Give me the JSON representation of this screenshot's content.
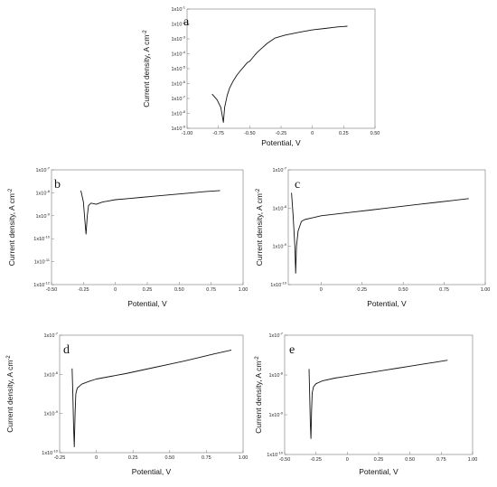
{
  "chart_data": [
    {
      "panel_label": "a",
      "type": "line",
      "xlabel": "Potential, V",
      "ylabel": "Current density, A cm",
      "ylabel_sup": "-2",
      "xlim": [
        -1.0,
        0.5
      ],
      "ylim_log10": [
        -9,
        -1
      ],
      "x_ticks": [
        "-1.00",
        "-0.75",
        "-0.50",
        "-0.25",
        "0",
        "0.25",
        "0.50"
      ],
      "x_tick_values": [
        -1.0,
        -0.75,
        -0.5,
        -0.25,
        0,
        0.25,
        0.5
      ],
      "y_ticks": [
        {
          "base": "1x10",
          "exp": "-1"
        },
        {
          "base": "1x10",
          "exp": "-2"
        },
        {
          "base": "1x10",
          "exp": "-3"
        },
        {
          "base": "1x10",
          "exp": "-4"
        },
        {
          "base": "1x10",
          "exp": "-5"
        },
        {
          "base": "1x10",
          "exp": "-6"
        },
        {
          "base": "1x10",
          "exp": "-7"
        },
        {
          "base": "1x10",
          "exp": "-8"
        },
        {
          "base": "1x10",
          "exp": "-9"
        }
      ],
      "y_tick_values": [
        -1,
        -2,
        -3,
        -4,
        -5,
        -6,
        -7,
        -8,
        -9
      ],
      "series": [
        {
          "points": [
            [
              -0.8,
              -6.7
            ],
            [
              -0.76,
              -7.1
            ],
            [
              -0.73,
              -7.6
            ],
            [
              -0.71,
              -8.6
            ],
            [
              -0.7,
              -7.6
            ],
            [
              -0.68,
              -6.8
            ],
            [
              -0.66,
              -6.3
            ],
            [
              -0.63,
              -5.8
            ],
            [
              -0.6,
              -5.4
            ],
            [
              -0.57,
              -5.1
            ],
            [
              -0.54,
              -4.8
            ],
            [
              -0.52,
              -4.6
            ],
            [
              -0.5,
              -4.5
            ],
            [
              -0.48,
              -4.3
            ],
            [
              -0.46,
              -4.1
            ],
            [
              -0.44,
              -3.9
            ],
            [
              -0.42,
              -3.75
            ],
            [
              -0.4,
              -3.6
            ],
            [
              -0.36,
              -3.3
            ],
            [
              -0.3,
              -2.95
            ],
            [
              -0.22,
              -2.75
            ],
            [
              -0.1,
              -2.55
            ],
            [
              0.0,
              -2.4
            ],
            [
              0.1,
              -2.3
            ],
            [
              0.2,
              -2.2
            ],
            [
              0.28,
              -2.15
            ]
          ]
        }
      ]
    },
    {
      "panel_label": "b",
      "type": "line",
      "xlabel": "Potential, V",
      "ylabel": "Current density, A cm",
      "ylabel_sup": "-2",
      "xlim": [
        -0.5,
        1.0
      ],
      "ylim_log10": [
        -12,
        -7
      ],
      "x_ticks": [
        "-0.50",
        "-0.25",
        "0",
        "0.25",
        "0.50",
        "0.75",
        "1.00"
      ],
      "x_tick_values": [
        -0.5,
        -0.25,
        0,
        0.25,
        0.5,
        0.75,
        1.0
      ],
      "y_ticks": [
        {
          "base": "1x10",
          "exp": "-7"
        },
        {
          "base": "1x10",
          "exp": "-8"
        },
        {
          "base": "1x10",
          "exp": "-9"
        },
        {
          "base": "1x10",
          "exp": "-10"
        },
        {
          "base": "1x10",
          "exp": "-11"
        },
        {
          "base": "1x10",
          "exp": "-12"
        }
      ],
      "y_tick_values": [
        -7,
        -8,
        -9,
        -10,
        -11,
        -12
      ],
      "series": [
        {
          "points": [
            [
              -0.27,
              -7.9
            ],
            [
              -0.25,
              -8.4
            ],
            [
              -0.24,
              -9.1
            ],
            [
              -0.23,
              -9.8
            ],
            [
              -0.22,
              -9.0
            ],
            [
              -0.21,
              -8.55
            ],
            [
              -0.19,
              -8.45
            ],
            [
              -0.15,
              -8.5
            ],
            [
              -0.1,
              -8.4
            ],
            [
              -0.05,
              -8.35
            ],
            [
              0.0,
              -8.3
            ],
            [
              0.1,
              -8.25
            ],
            [
              0.2,
              -8.2
            ],
            [
              0.3,
              -8.15
            ],
            [
              0.4,
              -8.1
            ],
            [
              0.5,
              -8.05
            ],
            [
              0.6,
              -8.0
            ],
            [
              0.7,
              -7.95
            ],
            [
              0.82,
              -7.9
            ]
          ]
        }
      ]
    },
    {
      "panel_label": "c",
      "type": "line",
      "xlabel": "Potential, V",
      "ylabel": "Current density, A cm",
      "ylabel_sup": "-2",
      "xlim": [
        -0.2,
        1.0
      ],
      "ylim_log10": [
        -10,
        -7
      ],
      "x_ticks": [
        "0",
        "0.25",
        "0.50",
        "0.75",
        "1.00"
      ],
      "x_tick_values": [
        0,
        0.25,
        0.5,
        0.75,
        1.0
      ],
      "y_ticks": [
        {
          "base": "1x10",
          "exp": "-7"
        },
        {
          "base": "1x10",
          "exp": "-8"
        },
        {
          "base": "1x10",
          "exp": "-9"
        },
        {
          "base": "1x10",
          "exp": "-10"
        }
      ],
      "y_tick_values": [
        -7,
        -8,
        -9,
        -10
      ],
      "series": [
        {
          "points": [
            [
              -0.18,
              -7.6
            ],
            [
              -0.17,
              -8.2
            ],
            [
              -0.16,
              -9.0
            ],
            [
              -0.155,
              -9.7
            ],
            [
              -0.15,
              -9.0
            ],
            [
              -0.14,
              -8.6
            ],
            [
              -0.12,
              -8.35
            ],
            [
              -0.1,
              -8.3
            ],
            [
              -0.05,
              -8.25
            ],
            [
              0.0,
              -8.2
            ],
            [
              0.1,
              -8.15
            ],
            [
              0.2,
              -8.1
            ],
            [
              0.3,
              -8.05
            ],
            [
              0.4,
              -8.0
            ],
            [
              0.5,
              -7.95
            ],
            [
              0.6,
              -7.9
            ],
            [
              0.7,
              -7.85
            ],
            [
              0.8,
              -7.8
            ],
            [
              0.9,
              -7.75
            ]
          ]
        }
      ]
    },
    {
      "panel_label": "d",
      "type": "line",
      "xlabel": "Potential, V",
      "ylabel": "Current density, A cm",
      "ylabel_sup": "-2",
      "xlim": [
        -0.25,
        1.0
      ],
      "ylim_log10": [
        -10,
        -7
      ],
      "x_ticks": [
        "-0.25",
        "0",
        "0.25",
        "0.50",
        "0.75",
        "1.00"
      ],
      "x_tick_values": [
        -0.25,
        0,
        0.25,
        0.5,
        0.75,
        1.0
      ],
      "y_ticks": [
        {
          "base": "1x10",
          "exp": "-7"
        },
        {
          "base": "1x10",
          "exp": "-8"
        },
        {
          "base": "1x10",
          "exp": "-9"
        },
        {
          "base": "1x10",
          "exp": "-10"
        }
      ],
      "y_tick_values": [
        -7,
        -8,
        -9,
        -10
      ],
      "series": [
        {
          "points": [
            [
              -0.165,
              -7.85
            ],
            [
              -0.16,
              -8.5
            ],
            [
              -0.155,
              -9.3
            ],
            [
              -0.15,
              -9.85
            ],
            [
              -0.145,
              -9.0
            ],
            [
              -0.14,
              -8.5
            ],
            [
              -0.13,
              -8.35
            ],
            [
              -0.1,
              -8.25
            ],
            [
              -0.05,
              -8.18
            ],
            [
              0.0,
              -8.12
            ],
            [
              0.1,
              -8.05
            ],
            [
              0.2,
              -7.98
            ],
            [
              0.3,
              -7.9
            ],
            [
              0.4,
              -7.82
            ],
            [
              0.5,
              -7.74
            ],
            [
              0.6,
              -7.66
            ],
            [
              0.7,
              -7.57
            ],
            [
              0.8,
              -7.48
            ],
            [
              0.92,
              -7.38
            ]
          ]
        }
      ]
    },
    {
      "panel_label": "e",
      "type": "line",
      "xlabel": "Potential, V",
      "ylabel": "Current density, A cm",
      "ylabel_sup": "-2",
      "xlim": [
        -0.5,
        1.0
      ],
      "ylim_log10": [
        -10,
        -7
      ],
      "x_ticks": [
        "-0.50",
        "-0.25",
        "0",
        "0.25",
        "0.50",
        "0.75",
        "1.00"
      ],
      "x_tick_values": [
        -0.5,
        -0.25,
        0,
        0.25,
        0.5,
        0.75,
        1.0
      ],
      "y_ticks": [
        {
          "base": "1x10",
          "exp": "-7"
        },
        {
          "base": "1x10",
          "exp": "-8"
        },
        {
          "base": "1x10",
          "exp": "-9"
        },
        {
          "base": "1x10",
          "exp": "-10"
        }
      ],
      "y_tick_values": [
        -7,
        -8,
        -9,
        -10
      ],
      "series": [
        {
          "points": [
            [
              -0.305,
              -7.85
            ],
            [
              -0.3,
              -8.5
            ],
            [
              -0.295,
              -9.2
            ],
            [
              -0.29,
              -9.6
            ],
            [
              -0.285,
              -8.9
            ],
            [
              -0.28,
              -8.45
            ],
            [
              -0.27,
              -8.3
            ],
            [
              -0.25,
              -8.22
            ],
            [
              -0.2,
              -8.15
            ],
            [
              -0.1,
              -8.08
            ],
            [
              0.0,
              -8.03
            ],
            [
              0.1,
              -7.98
            ],
            [
              0.2,
              -7.93
            ],
            [
              0.3,
              -7.88
            ],
            [
              0.4,
              -7.83
            ],
            [
              0.5,
              -7.78
            ],
            [
              0.6,
              -7.73
            ],
            [
              0.7,
              -7.68
            ],
            [
              0.8,
              -7.63
            ]
          ]
        }
      ]
    }
  ]
}
